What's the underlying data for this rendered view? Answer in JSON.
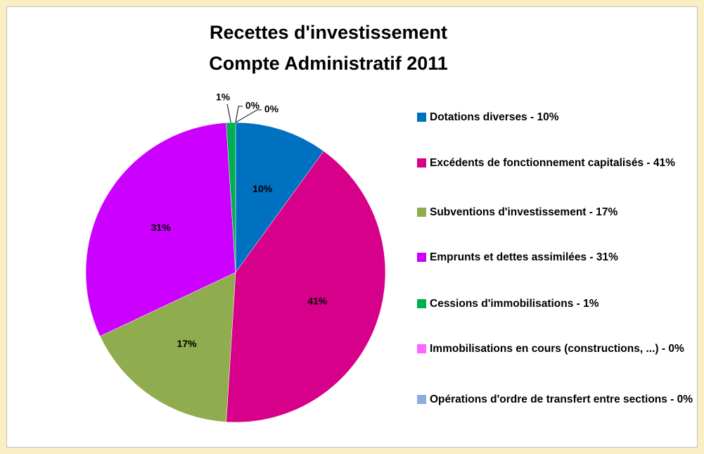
{
  "chart_data": {
    "type": "pie",
    "title": "Recettes d'investissement",
    "subtitle": "Compte Administratif 2011",
    "categories": [
      "Dotations diverses - 10%",
      "Excédents de fonctionnement capitalisés - 41%",
      "Subventions d'investissement - 17%",
      "Emprunts et dettes assimilées - 31%",
      "Cessions d'immobilisations - 1%",
      "Immobilisations en cours (constructions, ...) - 0%",
      "Opérations d'ordre de transfert entre sections - 0%"
    ],
    "values": [
      10,
      41,
      17,
      31,
      1,
      0,
      0
    ],
    "value_labels": [
      "10%",
      "41%",
      "17%",
      "31%",
      "1%",
      "0%",
      "0%"
    ],
    "colors": [
      "#0070c0",
      "#d6008a",
      "#8fac4e",
      "#cc00ff",
      "#00b050",
      "#ff66ff",
      "#8faadc"
    ],
    "legend": "right"
  }
}
